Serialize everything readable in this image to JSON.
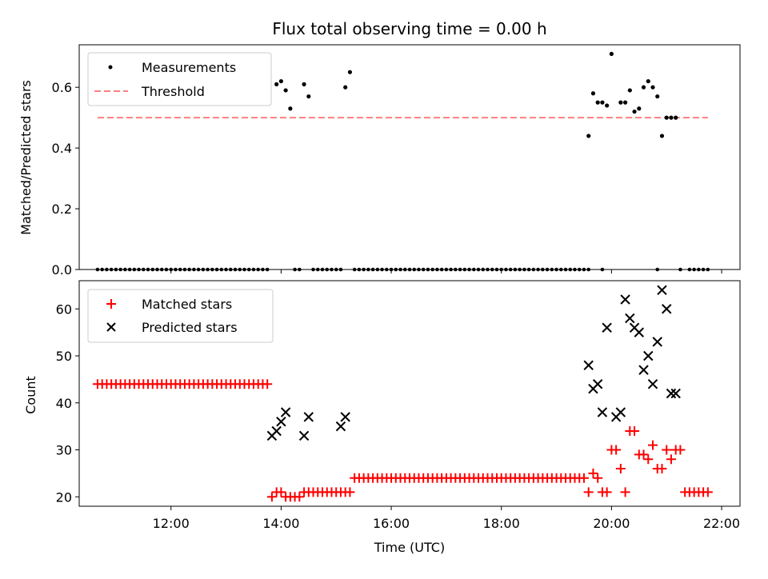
{
  "title": "Flux total observing time = 0.00 h",
  "colors": {
    "measure": "#000000",
    "threshold": "#ff7f7f",
    "matched": "#ff0000",
    "predicted": "#000000"
  },
  "chart_data": [
    {
      "type": "scatter",
      "ylabel": "Matched/Predicted stars",
      "xlim": [
        "10:20",
        "22:20"
      ],
      "ylim": [
        0,
        0.74
      ],
      "yticks": [
        "0.0",
        "0.2",
        "0.4",
        "0.6"
      ],
      "legend_position": "top-left",
      "legend": [
        "Measurements",
        "Threshold"
      ],
      "threshold": {
        "name": "Threshold",
        "y": 0.5,
        "x_start": "10:40",
        "x_end": "21:45"
      },
      "zero_series": {
        "y": 0,
        "x": [
          "10:40",
          "10:45",
          "10:50",
          "10:55",
          "11:00",
          "11:05",
          "11:10",
          "11:15",
          "11:20",
          "11:25",
          "11:30",
          "11:35",
          "11:40",
          "11:45",
          "11:50",
          "11:55",
          "12:00",
          "12:05",
          "12:10",
          "12:15",
          "12:20",
          "12:25",
          "12:30",
          "12:35",
          "12:40",
          "12:45",
          "12:50",
          "12:55",
          "13:00",
          "13:05",
          "13:10",
          "13:15",
          "13:20",
          "13:25",
          "13:30",
          "13:35",
          "13:40",
          "13:45",
          "14:15",
          "14:20",
          "14:35",
          "14:40",
          "14:45",
          "14:50",
          "14:55",
          "15:00",
          "15:05",
          "15:20",
          "15:25",
          "15:30",
          "15:35",
          "15:40",
          "15:45",
          "15:50",
          "15:55",
          "16:00",
          "16:05",
          "16:10",
          "16:15",
          "16:20",
          "16:25",
          "16:30",
          "16:35",
          "16:40",
          "16:45",
          "16:50",
          "16:55",
          "17:00",
          "17:05",
          "17:10",
          "17:15",
          "17:20",
          "17:25",
          "17:30",
          "17:35",
          "17:40",
          "17:45",
          "17:50",
          "17:55",
          "18:00",
          "18:05",
          "18:10",
          "18:15",
          "18:20",
          "18:25",
          "18:30",
          "18:35",
          "18:40",
          "18:45",
          "18:50",
          "18:55",
          "19:00",
          "19:05",
          "19:10",
          "19:15",
          "19:20",
          "19:25",
          "19:30",
          "19:35",
          "19:50",
          "20:50",
          "21:15",
          "21:25",
          "21:30",
          "21:35",
          "21:40",
          "21:45"
        ]
      },
      "series": [
        {
          "name": "Measurements",
          "x": [
            "13:55",
            "14:00",
            "14:05",
            "14:10",
            "14:25",
            "14:30",
            "15:10",
            "15:15",
            "19:35",
            "19:40",
            "19:45",
            "19:50",
            "19:55",
            "20:00",
            "20:10",
            "20:15",
            "20:20",
            "20:25",
            "20:30",
            "20:35",
            "20:40",
            "20:45",
            "20:50",
            "20:55",
            "21:00",
            "21:05",
            "21:10"
          ],
          "y": [
            0.61,
            0.62,
            0.59,
            0.53,
            0.61,
            0.57,
            0.6,
            0.65,
            0.44,
            0.58,
            0.55,
            0.55,
            0.54,
            0.71,
            0.55,
            0.55,
            0.59,
            0.52,
            0.53,
            0.6,
            0.62,
            0.6,
            0.57,
            0.44,
            0.5,
            0.5,
            0.5
          ]
        }
      ]
    },
    {
      "type": "scatter",
      "xlabel": "Time (UTC)",
      "ylabel": "Count",
      "xlim": [
        "10:20",
        "22:20"
      ],
      "ylim": [
        18,
        66
      ],
      "xticks": [
        "12:00",
        "14:00",
        "16:00",
        "18:00",
        "20:00",
        "22:00"
      ],
      "yticks": [
        "20",
        "30",
        "40",
        "50",
        "60"
      ],
      "legend_position": "top-left",
      "legend": [
        "Matched stars",
        "Predicted stars"
      ],
      "series": [
        {
          "name": "Matched stars",
          "marker": "plus",
          "x": [
            "10:40",
            "10:45",
            "10:50",
            "10:55",
            "11:00",
            "11:05",
            "11:10",
            "11:15",
            "11:20",
            "11:25",
            "11:30",
            "11:35",
            "11:40",
            "11:45",
            "11:50",
            "11:55",
            "12:00",
            "12:05",
            "12:10",
            "12:15",
            "12:20",
            "12:25",
            "12:30",
            "12:35",
            "12:40",
            "12:45",
            "12:50",
            "12:55",
            "13:00",
            "13:05",
            "13:10",
            "13:15",
            "13:20",
            "13:25",
            "13:30",
            "13:35",
            "13:40",
            "13:45",
            "13:50",
            "13:55",
            "14:00",
            "14:05",
            "14:10",
            "14:15",
            "14:20",
            "14:25",
            "14:30",
            "14:35",
            "14:40",
            "14:45",
            "14:50",
            "14:55",
            "15:00",
            "15:05",
            "15:10",
            "15:15",
            "15:20",
            "15:25",
            "15:30",
            "15:35",
            "15:40",
            "15:45",
            "15:50",
            "15:55",
            "16:00",
            "16:05",
            "16:10",
            "16:15",
            "16:20",
            "16:25",
            "16:30",
            "16:35",
            "16:40",
            "16:45",
            "16:50",
            "16:55",
            "17:00",
            "17:05",
            "17:10",
            "17:15",
            "17:20",
            "17:25",
            "17:30",
            "17:35",
            "17:40",
            "17:45",
            "17:50",
            "17:55",
            "18:00",
            "18:05",
            "18:10",
            "18:15",
            "18:20",
            "18:25",
            "18:30",
            "18:35",
            "18:40",
            "18:45",
            "18:50",
            "18:55",
            "19:00",
            "19:05",
            "19:10",
            "19:15",
            "19:20",
            "19:25",
            "19:30",
            "19:35",
            "19:40",
            "19:45",
            "19:50",
            "19:55",
            "20:00",
            "20:05",
            "20:10",
            "20:15",
            "20:20",
            "20:25",
            "20:30",
            "20:35",
            "20:40",
            "20:45",
            "20:50",
            "20:55",
            "21:00",
            "21:05",
            "21:10",
            "21:15",
            "21:20",
            "21:25",
            "21:30",
            "21:35",
            "21:40",
            "21:45"
          ],
          "y": [
            44,
            44,
            44,
            44,
            44,
            44,
            44,
            44,
            44,
            44,
            44,
            44,
            44,
            44,
            44,
            44,
            44,
            44,
            44,
            44,
            44,
            44,
            44,
            44,
            44,
            44,
            44,
            44,
            44,
            44,
            44,
            44,
            44,
            44,
            44,
            44,
            44,
            44,
            20,
            21,
            21,
            20,
            20,
            20,
            20,
            21,
            21,
            21,
            21,
            21,
            21,
            21,
            21,
            21,
            21,
            21,
            24,
            24,
            24,
            24,
            24,
            24,
            24,
            24,
            24,
            24,
            24,
            24,
            24,
            24,
            24,
            24,
            24,
            24,
            24,
            24,
            24,
            24,
            24,
            24,
            24,
            24,
            24,
            24,
            24,
            24,
            24,
            24,
            24,
            24,
            24,
            24,
            24,
            24,
            24,
            24,
            24,
            24,
            24,
            24,
            24,
            24,
            24,
            24,
            24,
            24,
            24,
            21,
            25,
            24,
            21,
            21,
            30,
            30,
            26,
            21,
            34,
            34,
            29,
            29,
            28,
            31,
            26,
            26,
            30,
            28,
            30,
            30,
            21,
            21,
            21,
            21,
            21,
            21
          ]
        },
        {
          "name": "Predicted stars",
          "marker": "x",
          "x": [
            "13:50",
            "13:55",
            "14:00",
            "14:05",
            "14:25",
            "14:30",
            "15:05",
            "15:10",
            "19:35",
            "19:40",
            "19:45",
            "19:50",
            "19:55",
            "20:05",
            "20:10",
            "20:15",
            "20:20",
            "20:25",
            "20:30",
            "20:35",
            "20:40",
            "20:45",
            "20:50",
            "20:55",
            "21:00",
            "21:05",
            "21:10"
          ],
          "y": [
            33,
            34,
            36,
            38,
            33,
            37,
            35,
            37,
            48,
            43,
            44,
            38,
            56,
            37,
            38,
            62,
            58,
            56,
            55,
            47,
            50,
            44,
            53,
            64,
            60,
            42,
            42
          ]
        }
      ]
    }
  ]
}
